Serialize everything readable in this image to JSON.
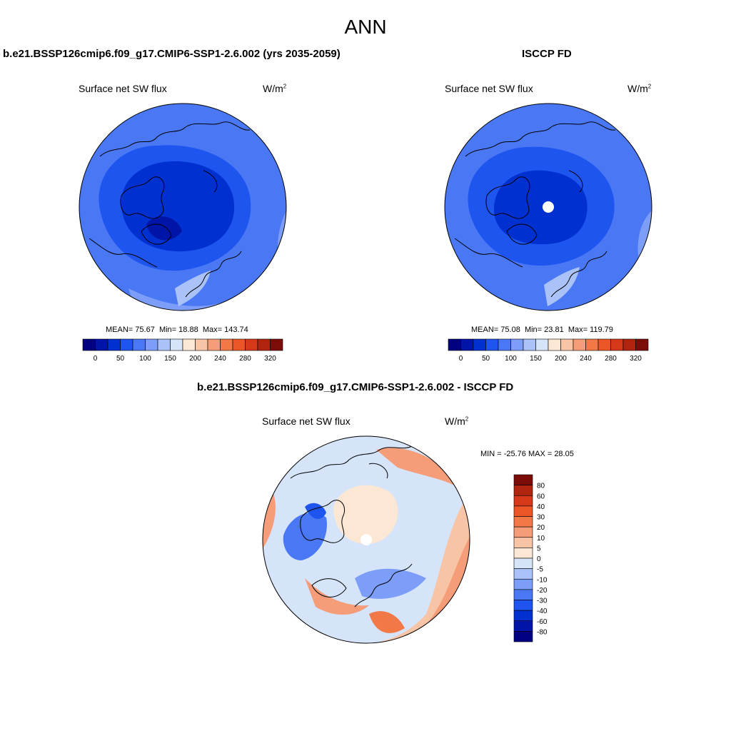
{
  "figure": {
    "title": "ANN"
  },
  "panels": {
    "left": {
      "title": "b.e21.BSSP126cmip6.f09_g17.CMIP6-SSP1-2.6.002 (yrs 2035-2059)",
      "variable": "Surface net SW flux",
      "units_base": "W/m",
      "units_exp": "2",
      "stats": {
        "mean_label": "MEAN=",
        "mean": "75.67",
        "min_label": "Min=",
        "min": "18.88",
        "max_label": "Max=",
        "max": "143.74"
      }
    },
    "right": {
      "title": "ISCCP FD",
      "variable": "Surface net SW flux",
      "units_base": "W/m",
      "units_exp": "2",
      "stats": {
        "mean_label": "MEAN=",
        "mean": "75.08",
        "min_label": "Min=",
        "min": "23.81",
        "max_label": "Max=",
        "max": "119.79"
      }
    },
    "diff": {
      "title": "b.e21.BSSP126cmip6.f09_g17.CMIP6-SSP1-2.6.002 - ISCCP FD",
      "variable": "Surface net SW flux",
      "units_base": "W/m",
      "units_exp": "2",
      "minmax": "MIN = -25.76 MAX =  28.05"
    }
  },
  "colorbars": {
    "abs": {
      "colors": [
        "#000080",
        "#0015A8",
        "#0030D0",
        "#1E55EE",
        "#4A78F5",
        "#7C9EF8",
        "#AAC2F8",
        "#D6E4FA",
        "#FCE6D4",
        "#F8C4A6",
        "#F59C78",
        "#F27848",
        "#EC5626",
        "#D6381A",
        "#B02410",
        "#7C0C08"
      ],
      "tick_labels": [
        "0",
        "50",
        "100",
        "150",
        "200",
        "240",
        "280",
        "320"
      ]
    },
    "diff": {
      "colors": [
        "#000080",
        "#0015A8",
        "#0030D0",
        "#1E55EE",
        "#4A78F5",
        "#7C9EF8",
        "#AAC2F8",
        "#D6E4FA",
        "#FCE6D4",
        "#F8C4A6",
        "#F59C78",
        "#F27848",
        "#EC5626",
        "#D6381A",
        "#B02410",
        "#7C0C08"
      ],
      "tick_labels": [
        "-80",
        "-60",
        "-40",
        "-30",
        "-20",
        "-10",
        "-5",
        "0",
        "5",
        "10",
        "20",
        "30",
        "40",
        "60",
        "80"
      ]
    }
  }
}
